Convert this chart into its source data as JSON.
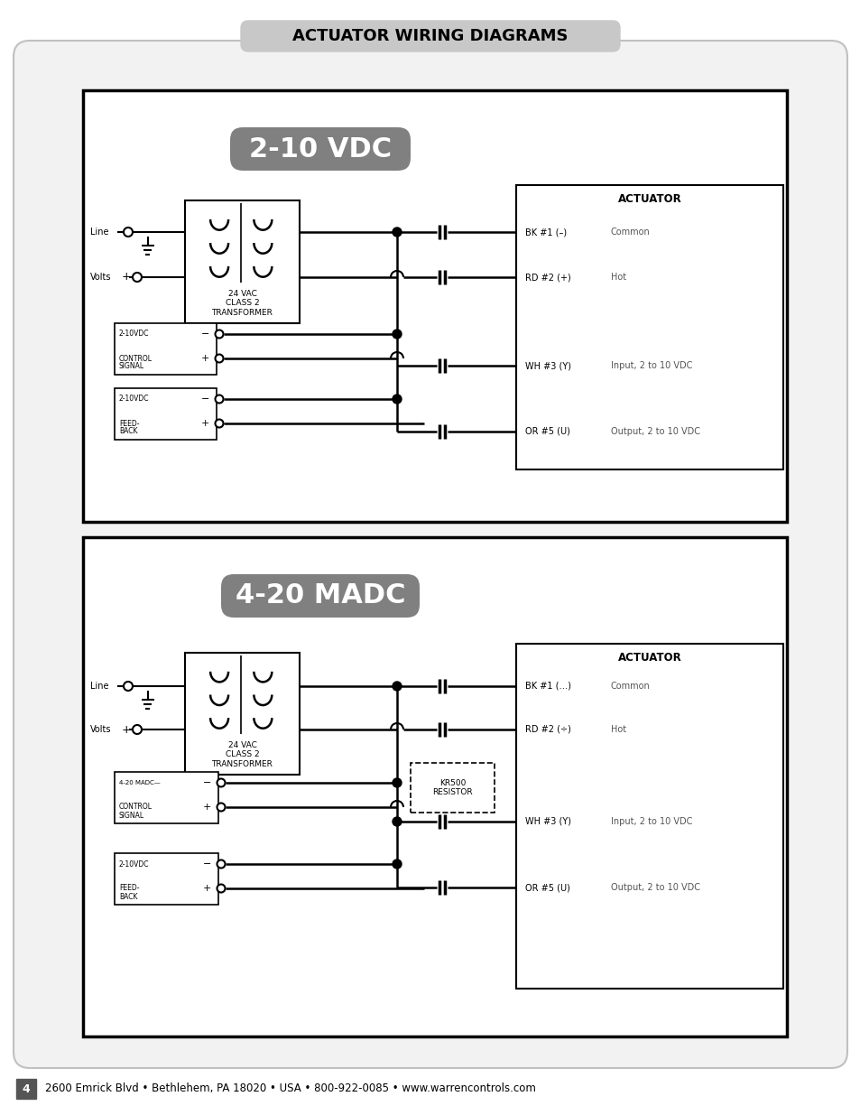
{
  "page_bg": "#ffffff",
  "outer_bg": "#f0f0f0",
  "title_text": "ACTUATOR WIRING DIAGRAMS",
  "footer_text": "2600 Emrick Blvd • Bethlehem, PA 18020 • USA • 800-922-0085 • www.warrencontrols.com",
  "page_num": "4",
  "diagram1_title": "2-10 VDC",
  "diagram2_title": "4-20 MADC",
  "actuator_label": "ACTUATOR",
  "transformer_label": "24 VAC\nCLASS 2\nTRANSFORMER",
  "resistor_label": "KR500\nRESISTOR",
  "wire1_label": "BK #1 (–)",
  "wire1_desc": "Common",
  "wire2_label": "RD #2 (+)",
  "wire2_desc": "Hot",
  "wire3_label": "WH #3 (Y)",
  "wire3_desc": "Input, 2 to 10 VDC",
  "wire5_label": "OR #5 (U)",
  "wire5_desc": "Output, 2 to 10 VDC",
  "wire2_label_d2": "RD #2 (÷)",
  "wire1_label_d2": "BK #1 (…)",
  "line_label": "Line",
  "volts_label": "Volts",
  "ctrl1_top_label": "2-10VDC",
  "ctrl1_sig_label": "CONTROL\nSIGNAL",
  "ctrl1_fb_top_label": "2-10VDC",
  "ctrl1_fb_label": "FEED-\nBACK",
  "ctrl2_top_label": "4-20 MADC—",
  "ctrl2_sig_label": "CONTROL\nSIGNAL",
  "ctrl2_fb_top_label": "2-10VDC",
  "ctrl2_fb_label": "FEED-\nBACK"
}
